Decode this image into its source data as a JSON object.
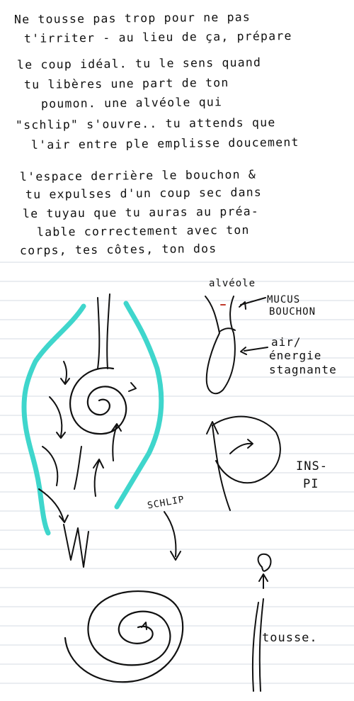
{
  "text_lines": [
    "Ne tousse pas trop pour ne pas",
    "t'irriter - au lieu de ça, prépare",
    "le coup idéal. tu le sens quand",
    "tu libères une part de ton",
    "poumon. une alvéole qui",
    "\"schlip\" s'ouvre.. tu attends que",
    "l'air entre ple emplisse doucement",
    "l'espace derrière le bouchon &",
    "tu expulses d'un coup sec dans",
    "le tuyau que tu auras au préa-",
    "lable correctement avec ton",
    "corps, tes côtes, ton dos"
  ],
  "labels": {
    "alveole": "alvéole",
    "mucus": "MUCUS",
    "bouchon": "BOUCHON",
    "air": "air/",
    "energie": "énergie",
    "stagnante": "stagnante",
    "schlip": "SCHLIP",
    "inspi_1": "INS-",
    "inspi_2": "PI",
    "tousse": "tousse."
  },
  "colors": {
    "ink": "#111111",
    "cyan": "#3fd6cc",
    "rule": "#d6dbe3",
    "margin_dot": "#c0392b"
  }
}
